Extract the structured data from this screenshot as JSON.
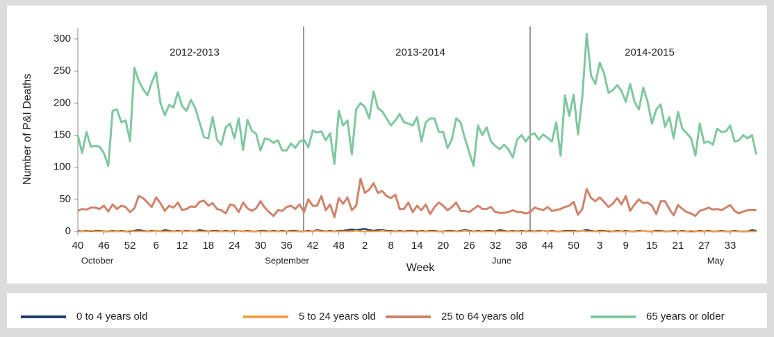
{
  "chart_data": {
    "type": "line",
    "x_label": "Week",
    "y_label": "Number of P&I Deaths",
    "annotations": [
      "2012-2013",
      "2013-2014",
      "2014-2015"
    ],
    "month_labels": [
      "October",
      "September",
      "June",
      "May"
    ],
    "categories": [
      "40",
      null,
      null,
      null,
      null,
      null,
      "46",
      null,
      null,
      null,
      null,
      null,
      "52",
      null,
      null,
      null,
      null,
      null,
      "6",
      null,
      null,
      null,
      null,
      null,
      "12",
      null,
      null,
      null,
      null,
      null,
      "18",
      null,
      null,
      null,
      null,
      null,
      "24",
      null,
      null,
      null,
      null,
      null,
      "30",
      null,
      null,
      null,
      null,
      null,
      "36",
      null,
      null,
      null,
      null,
      null,
      "42",
      null,
      null,
      null,
      null,
      null,
      "48",
      null,
      null,
      null,
      null,
      null,
      "2",
      null,
      null,
      null,
      null,
      null,
      "8",
      null,
      null,
      null,
      null,
      null,
      "14",
      null,
      null,
      null,
      null,
      null,
      "20",
      null,
      null,
      null,
      null,
      null,
      "26",
      null,
      null,
      null,
      null,
      null,
      "32",
      null,
      null,
      null,
      null,
      null,
      "38",
      null,
      null,
      null,
      null,
      null,
      "44",
      null,
      null,
      null,
      null,
      null,
      "50",
      null,
      null,
      null,
      null,
      null,
      "3",
      null,
      null,
      null,
      null,
      null,
      "9",
      null,
      null,
      null,
      null,
      null,
      "15",
      null,
      null,
      null,
      null,
      null,
      "21",
      null,
      null,
      null,
      null,
      null,
      "27",
      null,
      null,
      null,
      null,
      null,
      "33",
      null,
      null,
      null,
      null,
      null,
      null
    ],
    "ylim": [
      0,
      300
    ],
    "yticks": [
      0,
      50,
      100,
      150,
      200,
      250,
      300
    ],
    "series": [
      {
        "name": "0 to 4 years old",
        "color": "#1f3d6e",
        "values": [
          1,
          0,
          1,
          0,
          1,
          1,
          0,
          0,
          1,
          0,
          1,
          0,
          0,
          1,
          2,
          1,
          0,
          1,
          1,
          0,
          2,
          1,
          0,
          1,
          0,
          1,
          1,
          0,
          2,
          1,
          0,
          1,
          1,
          0,
          1,
          0,
          1,
          1,
          0,
          1,
          0,
          0,
          1,
          1,
          0,
          1,
          0,
          1,
          0,
          1,
          1,
          0,
          0,
          1,
          0,
          2,
          1,
          0,
          1,
          0,
          1,
          1,
          2,
          3,
          2,
          3,
          4,
          2,
          1,
          2,
          2,
          1,
          1,
          0,
          1,
          0,
          1,
          1,
          0,
          1,
          0,
          1,
          1,
          0,
          0,
          1,
          1,
          0,
          1,
          2,
          1,
          0,
          1,
          0,
          1,
          1,
          0,
          2,
          1,
          0,
          1,
          0,
          1,
          0,
          1,
          0,
          1,
          1,
          0,
          1,
          0,
          0,
          1,
          1,
          1,
          0,
          1,
          2,
          1,
          0,
          1,
          1,
          0,
          0,
          1,
          0,
          1,
          0,
          0,
          1,
          1,
          0,
          0,
          1,
          1,
          0,
          0,
          1,
          0,
          1,
          0,
          0,
          0,
          1,
          0,
          1,
          0,
          0,
          1,
          0,
          0,
          1,
          0,
          0,
          0,
          2,
          1
        ]
      },
      {
        "name": "5 to 24 years old",
        "color": "#f4a04a",
        "values": [
          0,
          0,
          0,
          1,
          0,
          0,
          0,
          0,
          0,
          0,
          0,
          0,
          1,
          0,
          0,
          0,
          0,
          0,
          1,
          0,
          0,
          0,
          0,
          0,
          0,
          0,
          1,
          0,
          0,
          0,
          0,
          0,
          0,
          0,
          0,
          0,
          0,
          1,
          0,
          0,
          0,
          0,
          0,
          0,
          0,
          0,
          0,
          0,
          0,
          0,
          0,
          0,
          0,
          0,
          0,
          1,
          0,
          0,
          0,
          0,
          0,
          0,
          0,
          0,
          1,
          0,
          0,
          0,
          0,
          0,
          1,
          0,
          0,
          0,
          0,
          0,
          0,
          0,
          1,
          0,
          0,
          0,
          0,
          0,
          0,
          0,
          0,
          0,
          0,
          1,
          0,
          0,
          0,
          0,
          0,
          0,
          0,
          0,
          0,
          0,
          0,
          0,
          0,
          0,
          0,
          0,
          0,
          1,
          0,
          0,
          0,
          0,
          0,
          0,
          0,
          0,
          1,
          0,
          0,
          0,
          0,
          0,
          1,
          0,
          0,
          0,
          0,
          0,
          0,
          0,
          1,
          0,
          0,
          0,
          0,
          0,
          0,
          0,
          0,
          0,
          0,
          1,
          0,
          0,
          0,
          0,
          0,
          0,
          0,
          0,
          0,
          0,
          0,
          0,
          0,
          0,
          0
        ]
      },
      {
        "name": "25 to 64 years old",
        "color": "#d0826a",
        "values": [
          32,
          35,
          34,
          37,
          37,
          35,
          40,
          31,
          42,
          35,
          40,
          38,
          30,
          36,
          55,
          52,
          45,
          38,
          53,
          44,
          32,
          40,
          37,
          45,
          33,
          35,
          39,
          38,
          46,
          48,
          40,
          44,
          35,
          33,
          28,
          42,
          40,
          30,
          45,
          36,
          32,
          36,
          47,
          37,
          30,
          24,
          33,
          32,
          38,
          40,
          35,
          42,
          30,
          50,
          40,
          40,
          55,
          33,
          42,
          22,
          52,
          43,
          53,
          33,
          40,
          82,
          60,
          65,
          75,
          60,
          63,
          55,
          52,
          57,
          35,
          35,
          45,
          30,
          40,
          33,
          42,
          27,
          38,
          45,
          40,
          33,
          38,
          45,
          32,
          32,
          30,
          35,
          40,
          35,
          35,
          38,
          30,
          29,
          29,
          30,
          33,
          30,
          30,
          28,
          30,
          37,
          35,
          33,
          38,
          32,
          33,
          35,
          38,
          40,
          46,
          26,
          35,
          66,
          52,
          47,
          53,
          46,
          38,
          43,
          52,
          42,
          55,
          32,
          42,
          50,
          44,
          45,
          40,
          27,
          47,
          47,
          35,
          25,
          41,
          35,
          30,
          28,
          24,
          32,
          34,
          37,
          34,
          35,
          33,
          37,
          41,
          32,
          28,
          31,
          33,
          33,
          33
        ]
      },
      {
        "name": "65 years or older",
        "color": "#7fc7a0",
        "values": [
          150,
          122,
          155,
          132,
          133,
          132,
          122,
          102,
          188,
          190,
          170,
          173,
          141,
          255,
          235,
          222,
          212,
          232,
          248,
          200,
          181,
          197,
          193,
          217,
          195,
          188,
          205,
          192,
          170,
          147,
          145,
          178,
          143,
          135,
          162,
          168,
          145,
          176,
          127,
          174,
          157,
          152,
          126,
          145,
          143,
          138,
          142,
          126,
          126,
          137,
          130,
          140,
          143,
          131,
          157,
          154,
          156,
          142,
          153,
          105,
          188,
          165,
          173,
          120,
          190,
          200,
          194,
          176,
          218,
          192,
          187,
          176,
          165,
          173,
          183,
          170,
          168,
          165,
          178,
          140,
          170,
          176,
          176,
          155,
          155,
          130,
          143,
          176,
          170,
          145,
          123,
          102,
          165,
          150,
          162,
          140,
          133,
          128,
          135,
          128,
          115,
          143,
          150,
          140,
          150,
          153,
          143,
          151,
          146,
          140,
          170,
          118,
          212,
          180,
          213,
          151,
          210,
          308,
          243,
          230,
          263,
          246,
          216,
          220,
          228,
          219,
          202,
          230,
          202,
          190,
          224,
          202,
          168,
          190,
          198,
          163,
          178,
          145,
          186,
          160,
          153,
          145,
          118,
          168,
          138,
          140,
          135,
          160,
          155,
          156,
          165,
          140,
          142,
          150,
          145,
          150,
          120
        ]
      }
    ]
  }
}
